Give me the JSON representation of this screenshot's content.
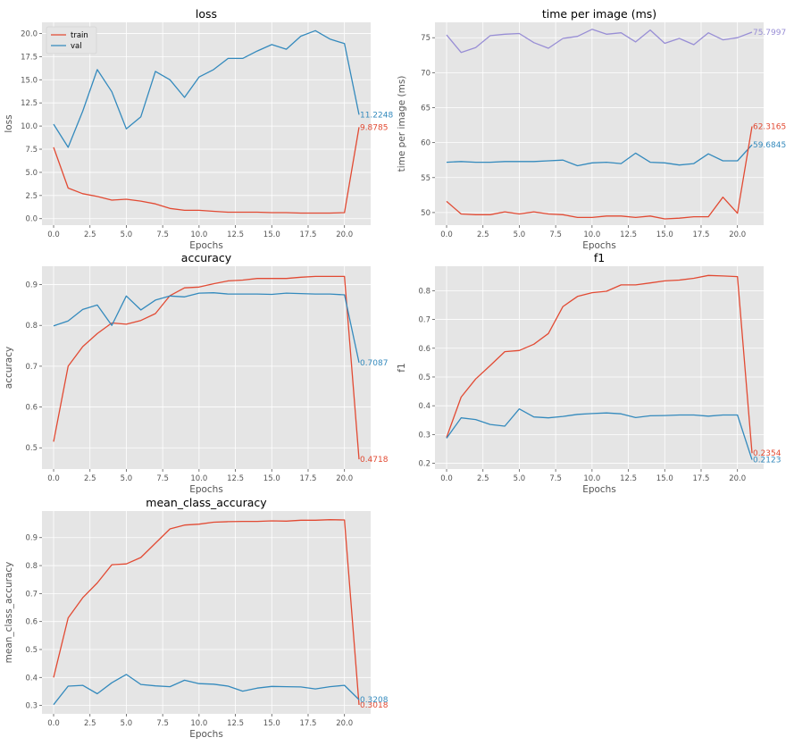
{
  "colors": {
    "background": "#ffffff",
    "plot_bg": "#e5e5e5",
    "grid": "#ffffff",
    "train": "#e24a33",
    "val": "#348abd",
    "purple": "#988ed5"
  },
  "chart_data": [
    {
      "type": "line",
      "title": "loss",
      "xlabel": "Epochs",
      "ylabel": "loss",
      "xlim": [
        -0.8,
        21.8
      ],
      "ylim": [
        -0.7,
        21.2
      ],
      "xticks": [
        0,
        2.5,
        5,
        7.5,
        10,
        12.5,
        15,
        17.5,
        20
      ],
      "xtick_labels": [
        "0.0",
        "2.5",
        "5.0",
        "7.5",
        "10.0",
        "12.5",
        "15.0",
        "17.5",
        "20.0"
      ],
      "yticks": [
        0,
        2.5,
        5,
        7.5,
        10,
        12.5,
        15,
        17.5,
        20
      ],
      "ytick_labels": [
        "0.0",
        "2.5",
        "5.0",
        "7.5",
        "10.0",
        "12.5",
        "15.0",
        "17.5",
        "20.0"
      ],
      "grid": true,
      "legend": {
        "location": "upper-left",
        "entries": [
          "train",
          "val"
        ]
      },
      "x": [
        0,
        1,
        2,
        3,
        4,
        5,
        6,
        7,
        8,
        9,
        10,
        11,
        12,
        13,
        14,
        15,
        16,
        17,
        18,
        19,
        20,
        21
      ],
      "series": [
        {
          "name": "train",
          "color": "#e24a33",
          "end_label": "9.8785",
          "values": [
            7.7,
            3.3,
            2.7,
            2.4,
            2.0,
            2.1,
            1.9,
            1.6,
            1.1,
            0.9,
            0.9,
            0.8,
            0.7,
            0.7,
            0.7,
            0.65,
            0.65,
            0.6,
            0.6,
            0.6,
            0.65,
            9.8785
          ]
        },
        {
          "name": "val",
          "color": "#348abd",
          "end_label": "11.2248",
          "values": [
            10.2,
            7.7,
            11.6,
            16.1,
            13.7,
            9.7,
            11.0,
            15.9,
            15.0,
            13.1,
            15.3,
            16.1,
            17.3,
            17.3,
            18.1,
            18.8,
            18.3,
            19.7,
            20.3,
            19.4,
            18.9,
            11.2248
          ]
        }
      ]
    },
    {
      "type": "line",
      "title": "time per image (ms)",
      "xlabel": "Epochs",
      "ylabel": "time per image (ms)",
      "xlim": [
        -0.8,
        21.8
      ],
      "ylim": [
        48.2,
        77.2
      ],
      "xticks": [
        0,
        2.5,
        5,
        7.5,
        10,
        12.5,
        15,
        17.5,
        20
      ],
      "xtick_labels": [
        "0.0",
        "2.5",
        "5.0",
        "7.5",
        "10.0",
        "12.5",
        "15.0",
        "17.5",
        "20.0"
      ],
      "yticks": [
        50,
        55,
        60,
        65,
        70,
        75
      ],
      "ytick_labels": [
        "50",
        "55",
        "60",
        "65",
        "70",
        "75"
      ],
      "grid": true,
      "x": [
        0,
        1,
        2,
        3,
        4,
        5,
        6,
        7,
        8,
        9,
        10,
        11,
        12,
        13,
        14,
        15,
        16,
        17,
        18,
        19,
        20,
        21
      ],
      "series": [
        {
          "color": "#988ed5",
          "end_label": "75.7997",
          "values": [
            75.4,
            72.9,
            73.6,
            75.3,
            75.5,
            75.6,
            74.3,
            73.5,
            74.9,
            75.2,
            76.2,
            75.5,
            75.7,
            74.4,
            76.1,
            74.2,
            74.9,
            74.0,
            75.7,
            74.7,
            75.0,
            75.7997
          ]
        },
        {
          "color": "#348abd",
          "end_label": "59.6845",
          "values": [
            57.2,
            57.3,
            57.2,
            57.2,
            57.3,
            57.3,
            57.3,
            57.4,
            57.5,
            56.7,
            57.1,
            57.2,
            57.0,
            58.5,
            57.2,
            57.1,
            56.8,
            57.0,
            58.4,
            57.4,
            57.4,
            59.6845
          ]
        },
        {
          "color": "#e24a33",
          "end_label": "62.3165",
          "values": [
            51.6,
            49.8,
            49.7,
            49.7,
            50.1,
            49.8,
            50.1,
            49.8,
            49.7,
            49.3,
            49.3,
            49.5,
            49.5,
            49.3,
            49.5,
            49.1,
            49.2,
            49.4,
            49.4,
            52.2,
            49.9,
            62.3165
          ]
        }
      ]
    },
    {
      "type": "line",
      "title": "accuracy",
      "xlabel": "Epochs",
      "ylabel": "accuracy",
      "xlim": [
        -0.8,
        21.8
      ],
      "ylim": [
        0.448,
        0.945
      ],
      "xticks": [
        0,
        2.5,
        5,
        7.5,
        10,
        12.5,
        15,
        17.5,
        20
      ],
      "xtick_labels": [
        "0.0",
        "2.5",
        "5.0",
        "7.5",
        "10.0",
        "12.5",
        "15.0",
        "17.5",
        "20.0"
      ],
      "yticks": [
        0.5,
        0.6,
        0.7,
        0.8,
        0.9
      ],
      "ytick_labels": [
        "0.5",
        "0.6",
        "0.7",
        "0.8",
        "0.9"
      ],
      "grid": true,
      "x": [
        0,
        1,
        2,
        3,
        4,
        5,
        6,
        7,
        8,
        9,
        10,
        11,
        12,
        13,
        14,
        15,
        16,
        17,
        18,
        19,
        20,
        21
      ],
      "series": [
        {
          "name": "train",
          "color": "#e24a33",
          "end_label": "0.4718",
          "values": [
            0.515,
            0.7,
            0.748,
            0.78,
            0.806,
            0.803,
            0.812,
            0.829,
            0.873,
            0.892,
            0.894,
            0.902,
            0.909,
            0.911,
            0.915,
            0.915,
            0.915,
            0.918,
            0.92,
            0.92,
            0.92,
            0.4718
          ]
        },
        {
          "name": "val",
          "color": "#348abd",
          "end_label": "0.7087",
          "values": [
            0.799,
            0.811,
            0.839,
            0.85,
            0.8,
            0.872,
            0.838,
            0.862,
            0.872,
            0.87,
            0.879,
            0.88,
            0.877,
            0.877,
            0.877,
            0.876,
            0.879,
            0.878,
            0.877,
            0.877,
            0.875,
            0.7087
          ]
        }
      ]
    },
    {
      "type": "line",
      "title": "f1",
      "xlabel": "Epochs",
      "ylabel": "f1",
      "xlim": [
        -0.8,
        21.8
      ],
      "ylim": [
        0.18,
        0.885
      ],
      "xticks": [
        0,
        2.5,
        5,
        7.5,
        10,
        12.5,
        15,
        17.5,
        20
      ],
      "xtick_labels": [
        "0.0",
        "2.5",
        "5.0",
        "7.5",
        "10.0",
        "12.5",
        "15.0",
        "17.5",
        "20.0"
      ],
      "yticks": [
        0.2,
        0.3,
        0.4,
        0.5,
        0.6,
        0.7,
        0.8
      ],
      "ytick_labels": [
        "0.2",
        "0.3",
        "0.4",
        "0.5",
        "0.6",
        "0.7",
        "0.8"
      ],
      "grid": true,
      "x": [
        0,
        1,
        2,
        3,
        4,
        5,
        6,
        7,
        8,
        9,
        10,
        11,
        12,
        13,
        14,
        15,
        16,
        17,
        18,
        19,
        20,
        21
      ],
      "series": [
        {
          "name": "train",
          "color": "#e24a33",
          "end_label": "0.2354",
          "values": [
            0.29,
            0.43,
            0.493,
            0.54,
            0.588,
            0.592,
            0.614,
            0.651,
            0.745,
            0.78,
            0.793,
            0.798,
            0.82,
            0.82,
            0.827,
            0.834,
            0.837,
            0.843,
            0.853,
            0.851,
            0.849,
            0.2354
          ]
        },
        {
          "name": "val",
          "color": "#348abd",
          "end_label": "0.2123",
          "values": [
            0.287,
            0.358,
            0.352,
            0.335,
            0.329,
            0.389,
            0.361,
            0.358,
            0.363,
            0.37,
            0.373,
            0.375,
            0.372,
            0.359,
            0.365,
            0.366,
            0.368,
            0.368,
            0.364,
            0.368,
            0.368,
            0.2123
          ]
        }
      ]
    },
    {
      "type": "line",
      "title": "mean_class_accuracy",
      "xlabel": "Epochs",
      "ylabel": "mean_class_accuracy",
      "xlim": [
        -0.8,
        21.8
      ],
      "ylim": [
        0.27,
        0.995
      ],
      "xticks": [
        0,
        2.5,
        5,
        7.5,
        10,
        12.5,
        15,
        17.5,
        20
      ],
      "xtick_labels": [
        "0.0",
        "2.5",
        "5.0",
        "7.5",
        "10.0",
        "12.5",
        "15.0",
        "17.5",
        "20.0"
      ],
      "yticks": [
        0.3,
        0.4,
        0.5,
        0.6,
        0.7,
        0.8,
        0.9
      ],
      "ytick_labels": [
        "0.3",
        "0.4",
        "0.5",
        "0.6",
        "0.7",
        "0.8",
        "0.9"
      ],
      "grid": true,
      "x": [
        0,
        1,
        2,
        3,
        4,
        5,
        6,
        7,
        8,
        9,
        10,
        11,
        12,
        13,
        14,
        15,
        16,
        17,
        18,
        19,
        20,
        21
      ],
      "series": [
        {
          "name": "train",
          "color": "#e24a33",
          "end_label": "0.3018",
          "values": [
            0.4,
            0.613,
            0.685,
            0.738,
            0.803,
            0.806,
            0.829,
            0.88,
            0.931,
            0.945,
            0.948,
            0.955,
            0.957,
            0.958,
            0.958,
            0.96,
            0.959,
            0.962,
            0.962,
            0.964,
            0.963,
            0.3018
          ]
        },
        {
          "name": "val",
          "color": "#348abd",
          "end_label": "0.3208",
          "values": [
            0.303,
            0.369,
            0.372,
            0.342,
            0.381,
            0.411,
            0.375,
            0.37,
            0.367,
            0.39,
            0.378,
            0.376,
            0.369,
            0.351,
            0.362,
            0.368,
            0.367,
            0.366,
            0.359,
            0.367,
            0.372,
            0.3208
          ]
        }
      ]
    }
  ]
}
